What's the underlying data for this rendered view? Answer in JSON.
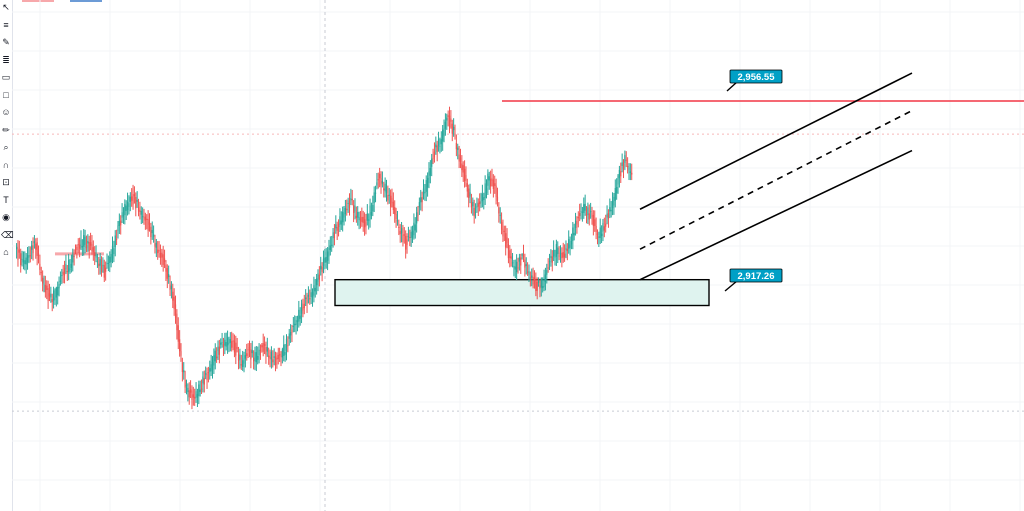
{
  "chart_data": {
    "type": "candlestick",
    "title": "",
    "ylim": [
      2890,
      2970
    ],
    "candles": [
      [
        2925,
        2927,
        2920,
        2922
      ],
      [
        2922,
        2926,
        2919,
        2924
      ],
      [
        2924,
        2928,
        2921,
        2926
      ],
      [
        2926,
        2929,
        2916,
        2918
      ],
      [
        2918,
        2920,
        2912,
        2914
      ],
      [
        2914,
        2917,
        2911,
        2916
      ],
      [
        2916,
        2922,
        2913,
        2920
      ],
      [
        2920,
        2924,
        2917,
        2922
      ],
      [
        2922,
        2926,
        2919,
        2925
      ],
      [
        2925,
        2930,
        2921,
        2927
      ],
      [
        2927,
        2930,
        2923,
        2925
      ],
      [
        2925,
        2928,
        2921,
        2923
      ],
      [
        2923,
        2925,
        2918,
        2920
      ],
      [
        2920,
        2925,
        2918,
        2924
      ],
      [
        2924,
        2931,
        2921,
        2929
      ],
      [
        2929,
        2936,
        2926,
        2934
      ],
      [
        2934,
        2938,
        2931,
        2936
      ],
      [
        2936,
        2940,
        2932,
        2934
      ],
      [
        2934,
        2937,
        2929,
        2931
      ],
      [
        2931,
        2934,
        2926,
        2928
      ],
      [
        2928,
        2932,
        2922,
        2924
      ],
      [
        2924,
        2927,
        2918,
        2921
      ],
      [
        2921,
        2923,
        2912,
        2915
      ],
      [
        2915,
        2917,
        2900,
        2903
      ],
      [
        2903,
        2905,
        2892,
        2895
      ],
      [
        2895,
        2898,
        2890,
        2893
      ],
      [
        2893,
        2897,
        2890,
        2896
      ],
      [
        2896,
        2900,
        2893,
        2898
      ],
      [
        2898,
        2904,
        2895,
        2902
      ],
      [
        2902,
        2906,
        2898,
        2904
      ],
      [
        2904,
        2908,
        2900,
        2906
      ],
      [
        2906,
        2910,
        2902,
        2904
      ],
      [
        2904,
        2907,
        2899,
        2901
      ],
      [
        2901,
        2905,
        2898,
        2903
      ],
      [
        2903,
        2906,
        2899,
        2902
      ],
      [
        2902,
        2905,
        2898,
        2904
      ],
      [
        2904,
        2907,
        2900,
        2903
      ],
      [
        2903,
        2906,
        2899,
        2901
      ],
      [
        2901,
        2904,
        2898,
        2903
      ],
      [
        2903,
        2908,
        2901,
        2906
      ],
      [
        2906,
        2912,
        2904,
        2910
      ],
      [
        2910,
        2915,
        2907,
        2913
      ],
      [
        2913,
        2918,
        2910,
        2915
      ],
      [
        2915,
        2920,
        2912,
        2918
      ],
      [
        2918,
        2925,
        2915,
        2922
      ],
      [
        2922,
        2929,
        2919,
        2926
      ],
      [
        2926,
        2933,
        2923,
        2930
      ],
      [
        2930,
        2936,
        2927,
        2933
      ],
      [
        2933,
        2938,
        2929,
        2935
      ],
      [
        2935,
        2939,
        2930,
        2932
      ],
      [
        2932,
        2935,
        2926,
        2930
      ],
      [
        2930,
        2936,
        2927,
        2934
      ],
      [
        2934,
        2942,
        2931,
        2940
      ],
      [
        2940,
        2946,
        2936,
        2938
      ],
      [
        2938,
        2941,
        2931,
        2934
      ],
      [
        2934,
        2938,
        2928,
        2930
      ],
      [
        2930,
        2934,
        2923,
        2926
      ],
      [
        2926,
        2930,
        2922,
        2929
      ],
      [
        2929,
        2936,
        2926,
        2934
      ],
      [
        2934,
        2941,
        2931,
        2939
      ],
      [
        2939,
        2947,
        2936,
        2945
      ],
      [
        2945,
        2950,
        2941,
        2948
      ],
      [
        2948,
        2955,
        2945,
        2953
      ],
      [
        2953,
        2957,
        2948,
        2950
      ],
      [
        2950,
        2952,
        2941,
        2943
      ],
      [
        2943,
        2946,
        2936,
        2938
      ],
      [
        2938,
        2941,
        2930,
        2933
      ],
      [
        2933,
        2937,
        2929,
        2935
      ],
      [
        2935,
        2942,
        2932,
        2940
      ],
      [
        2940,
        2946,
        2936,
        2938
      ],
      [
        2938,
        2940,
        2928,
        2930
      ],
      [
        2930,
        2932,
        2922,
        2924
      ],
      [
        2924,
        2927,
        2918,
        2921
      ],
      [
        2921,
        2924,
        2917,
        2923
      ],
      [
        2923,
        2926,
        2918,
        2920
      ],
      [
        2920,
        2923,
        2915,
        2917
      ],
      [
        2917,
        2919,
        2913,
        2918
      ],
      [
        2918,
        2924,
        2916,
        2922
      ],
      [
        2922,
        2927,
        2919,
        2925
      ],
      [
        2925,
        2928,
        2920,
        2923
      ],
      [
        2923,
        2929,
        2921,
        2927
      ],
      [
        2927,
        2933,
        2925,
        2931
      ],
      [
        2931,
        2936,
        2928,
        2934
      ],
      [
        2934,
        2937,
        2929,
        2932
      ],
      [
        2932,
        2934,
        2925,
        2928
      ],
      [
        2928,
        2932,
        2922,
        2930
      ],
      [
        2930,
        2936,
        2928,
        2934
      ],
      [
        2934,
        2941,
        2932,
        2940
      ],
      [
        2940,
        2946,
        2937,
        2944
      ],
      [
        2944,
        2947,
        2939,
        2941
      ]
    ],
    "horizontal_lines": [
      2956.55
    ],
    "price_labels": [
      "2,956.55",
      "2,917.26"
    ],
    "zone": {
      "top": 2918.5,
      "bottom": 2913
    },
    "marker": {
      "price": 2924
    },
    "channel": {
      "upper": {
        "start": 2933.5,
        "end": 2962.5
      },
      "mid": {
        "start": 2925,
        "end": 2954.5
      },
      "lower": {
        "start": 2918.5,
        "end": 2946
      }
    },
    "hline_dotted": [
      2949.5,
      2890.5
    ],
    "colors": {
      "up": "#26a69a",
      "down": "#ef5350",
      "level": "#f23645",
      "zone": "#dff3ef",
      "label": "#00a0c6"
    }
  },
  "toolbar": {
    "icons": [
      "cursor-icon",
      "menu-lines-icon",
      "brush-icon",
      "fib-icon",
      "rectangle-icon",
      "square-icon",
      "face-icon",
      "pencil-icon",
      "magnifier-icon",
      "magnet-icon",
      "lock-icon",
      "text-icon",
      "eye-icon",
      "trash-icon",
      "house-icon"
    ]
  },
  "legend": {
    "colors": [
      "#f7a8ab",
      "#6c9bd6"
    ]
  }
}
